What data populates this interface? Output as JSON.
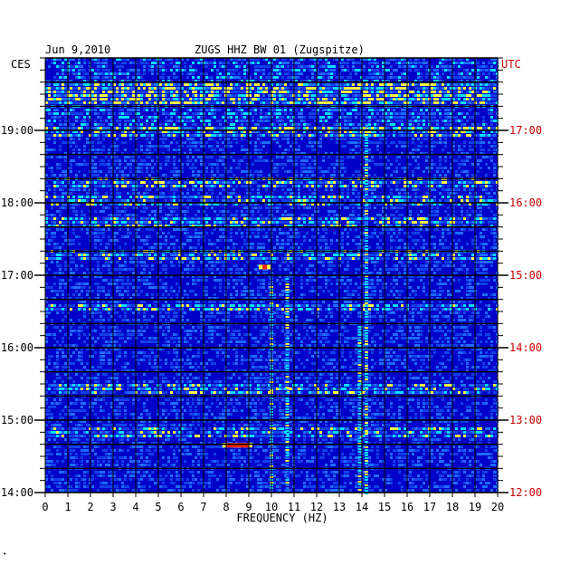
{
  "chart_data": {
    "type": "heatmap",
    "title_date": "Jun 9,2010",
    "title_station": "ZUGS HHZ BW 01 (Zugspitze)",
    "left_tz": "CES",
    "right_tz": "UTC",
    "xlabel": "FREQUENCY (HZ)",
    "xlim": [
      0,
      20
    ],
    "x_ticks": [
      "0",
      "1",
      "2",
      "3",
      "4",
      "5",
      "6",
      "7",
      "8",
      "9",
      "10",
      "11",
      "12",
      "13",
      "14",
      "15",
      "16",
      "17",
      "18",
      "19",
      "20"
    ],
    "y_range_hours_local": [
      14.0,
      20.0
    ],
    "y_ticks_left": [
      "19:00",
      "18:00",
      "17:00",
      "16:00",
      "15:00",
      "14:00"
    ],
    "y_ticks_right": [
      "17:00",
      "16:00",
      "15:00",
      "14:00",
      "13:00",
      "12:00"
    ],
    "y_tick_values_local": [
      19,
      18,
      17,
      16,
      15,
      14
    ],
    "grid": true,
    "colors": {
      "background": "#0000c8",
      "low": "#0000c8",
      "mid": "#1e6cff",
      "high": "#00e0ff",
      "peak": "#ffff40",
      "max": "#ff2000",
      "right_axis_label": "#cc0000"
    },
    "features": [
      {
        "kind": "vertical_band",
        "freq": 10.0,
        "time_from": 14.0,
        "time_to": 17.0
      },
      {
        "kind": "vertical_band",
        "freq": 10.7,
        "time_from": 14.0,
        "time_to": 17.0
      },
      {
        "kind": "vertical_band",
        "freq": 14.2,
        "time_from": 14.0,
        "time_to": 19.1
      },
      {
        "kind": "vertical_band",
        "freq": 13.9,
        "time_from": 14.0,
        "time_to": 16.3
      },
      {
        "kind": "hot_spot",
        "freq_from": 8.0,
        "freq_to": 9.0,
        "time": 14.66
      },
      {
        "kind": "hot_spot",
        "freq_from": 9.6,
        "freq_to": 9.8,
        "time": 17.12
      }
    ],
    "bright_rows_local": [
      19.6,
      19.45,
      19.0,
      18.3,
      18.05,
      17.75,
      17.3,
      16.58,
      15.45,
      14.85
    ]
  },
  "footer": {
    "corner_mark": "•"
  }
}
